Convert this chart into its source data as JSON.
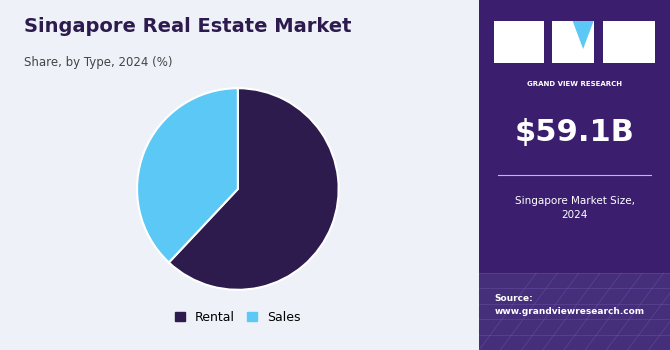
{
  "title": "Singapore Real Estate Market",
  "subtitle": "Share, by Type, 2024 (%)",
  "pie_labels": [
    "Rental",
    "Sales"
  ],
  "pie_values": [
    62,
    38
  ],
  "pie_colors": [
    "#2d1b4e",
    "#5bc8f5"
  ],
  "pie_startangle": 90,
  "left_bg_color": "#eef2f8",
  "right_bg_color": "#3b1f6e",
  "right_bg_color2": "#2a1455",
  "market_size": "$59.1B",
  "market_size_label": "Singapore Market Size,\n2024",
  "source_text": "Source:\nwww.grandviewresearch.com",
  "legend_labels": [
    "Rental",
    "Sales"
  ],
  "legend_colors": [
    "#2d1b4e",
    "#5bc8f5"
  ],
  "title_color": "#2d1b4e",
  "subtitle_color": "#444444"
}
